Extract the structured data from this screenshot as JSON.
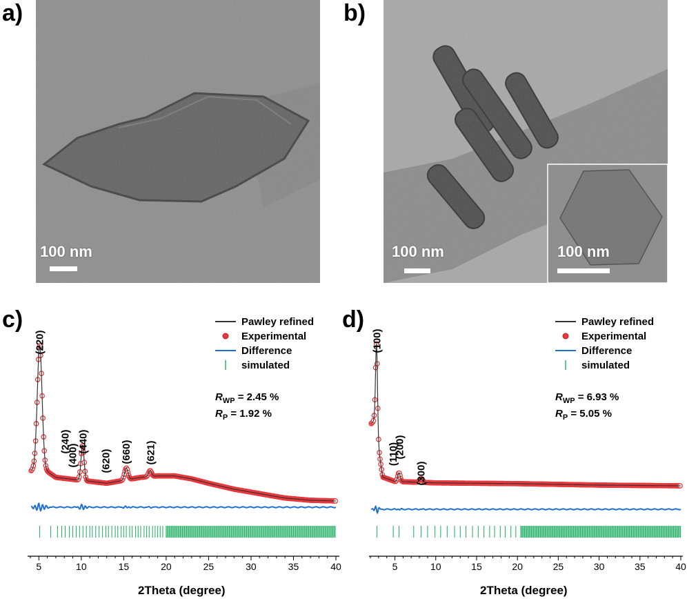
{
  "panels": {
    "a": {
      "letter": "a)",
      "scale_label": "100 nm"
    },
    "b": {
      "letter": "b)",
      "scale_label": "100 nm",
      "inset_scale_label": "100 nm"
    },
    "c": {
      "letter": "c)"
    },
    "d": {
      "letter": "d)"
    }
  },
  "legend": {
    "pawley": "Pawley refined",
    "experimental": "Experimental",
    "difference": "Difference",
    "simulated": "simulated"
  },
  "colors": {
    "pawley": "#333333",
    "experimental": "#e8383d",
    "difference": "#1f6fd1",
    "simulated": "#2db36b"
  },
  "chart_data": [
    {
      "type": "line",
      "panel": "c",
      "xlabel": "2Theta (degree)",
      "xlim": [
        4,
        40
      ],
      "xticks": [
        5,
        10,
        15,
        20,
        25,
        30,
        35,
        40
      ],
      "stats": {
        "rwp_label": "R",
        "rwp_sub": "WP",
        "rwp_value": " = 2.45 %",
        "rp_label": "R",
        "rp_sub": "P",
        "rp_value": " = 1.92 %"
      },
      "peaks": [
        {
          "label": "(220)",
          "x": 5.1
        },
        {
          "label": "(240)",
          "x": 8.1
        },
        {
          "label": "(400)",
          "x": 9.0
        },
        {
          "label": "(440)",
          "x": 10.2
        },
        {
          "label": "(620)",
          "x": 12.9
        },
        {
          "label": "(660)",
          "x": 15.3
        },
        {
          "label": "(621)",
          "x": 18.2
        }
      ],
      "profile": {
        "baseline": [
          [
            4,
            0.2
          ],
          [
            5,
            0.24
          ],
          [
            7,
            0.16
          ],
          [
            10,
            0.14
          ],
          [
            13,
            0.12
          ],
          [
            15,
            0.14
          ],
          [
            17,
            0.16
          ],
          [
            19,
            0.17
          ],
          [
            21,
            0.17
          ],
          [
            23,
            0.15
          ],
          [
            25,
            0.12
          ],
          [
            28,
            0.08
          ],
          [
            31,
            0.05
          ],
          [
            34,
            0.02
          ],
          [
            37,
            0.005
          ],
          [
            40,
            0.0
          ]
        ],
        "gaussians": [
          [
            5.1,
            0.28,
            0.82
          ],
          [
            10.15,
            0.18,
            0.24
          ],
          [
            15.3,
            0.2,
            0.08
          ],
          [
            18.1,
            0.18,
            0.04
          ]
        ]
      },
      "simulated_ticks": [
        5.1,
        6.4,
        7.2,
        7.7,
        8.1,
        8.6,
        9.0,
        9.4,
        9.8,
        10.2,
        10.6,
        11.0,
        11.3,
        11.7,
        12.1,
        12.5,
        12.9,
        13.2,
        13.6,
        14.0,
        14.3,
        14.7,
        15.0,
        15.3,
        15.7,
        16.0,
        16.4,
        16.7,
        17.0,
        17.4,
        17.7,
        18.0,
        18.4,
        18.7,
        19.0,
        19.3,
        19.6,
        20.0
      ]
    },
    {
      "type": "line",
      "panel": "d",
      "xlabel": "2Theta (degree)",
      "xlim": [
        2,
        40
      ],
      "xticks": [
        5,
        10,
        15,
        20,
        25,
        30,
        35,
        40
      ],
      "stats": {
        "rwp_label": "R",
        "rwp_sub": "WP",
        "rwp_value": " = 6.93 %",
        "rp_label": "R",
        "rp_sub": "P",
        "rp_value": " = 5.05 %"
      },
      "peaks": [
        {
          "label": "(100)",
          "x": 2.8
        },
        {
          "label": "(110)",
          "x": 4.8
        },
        {
          "label": "(200)",
          "x": 5.6
        },
        {
          "label": "(300)",
          "x": 8.2
        }
      ],
      "profile": {
        "baseline": [
          [
            2,
            0.42
          ],
          [
            2.5,
            0.45
          ],
          [
            3.5,
            0.06
          ],
          [
            5,
            0.03
          ],
          [
            10,
            0.02
          ],
          [
            20,
            0.015
          ],
          [
            30,
            0.005
          ],
          [
            40,
            0.0
          ]
        ],
        "gaussians": [
          [
            2.75,
            0.12,
            0.62
          ],
          [
            5.5,
            0.15,
            0.06
          ],
          [
            8.2,
            0.2,
            0.025
          ]
        ]
      },
      "simulated_ticks": [
        2.8,
        4.8,
        5.5,
        7.3,
        8.2,
        9.0,
        9.9,
        10.6,
        11.4,
        12.3,
        13.0,
        13.7,
        14.5,
        15.2,
        15.9,
        16.6,
        17.2,
        17.9,
        18.5,
        19.2,
        19.8,
        20.4
      ]
    }
  ]
}
